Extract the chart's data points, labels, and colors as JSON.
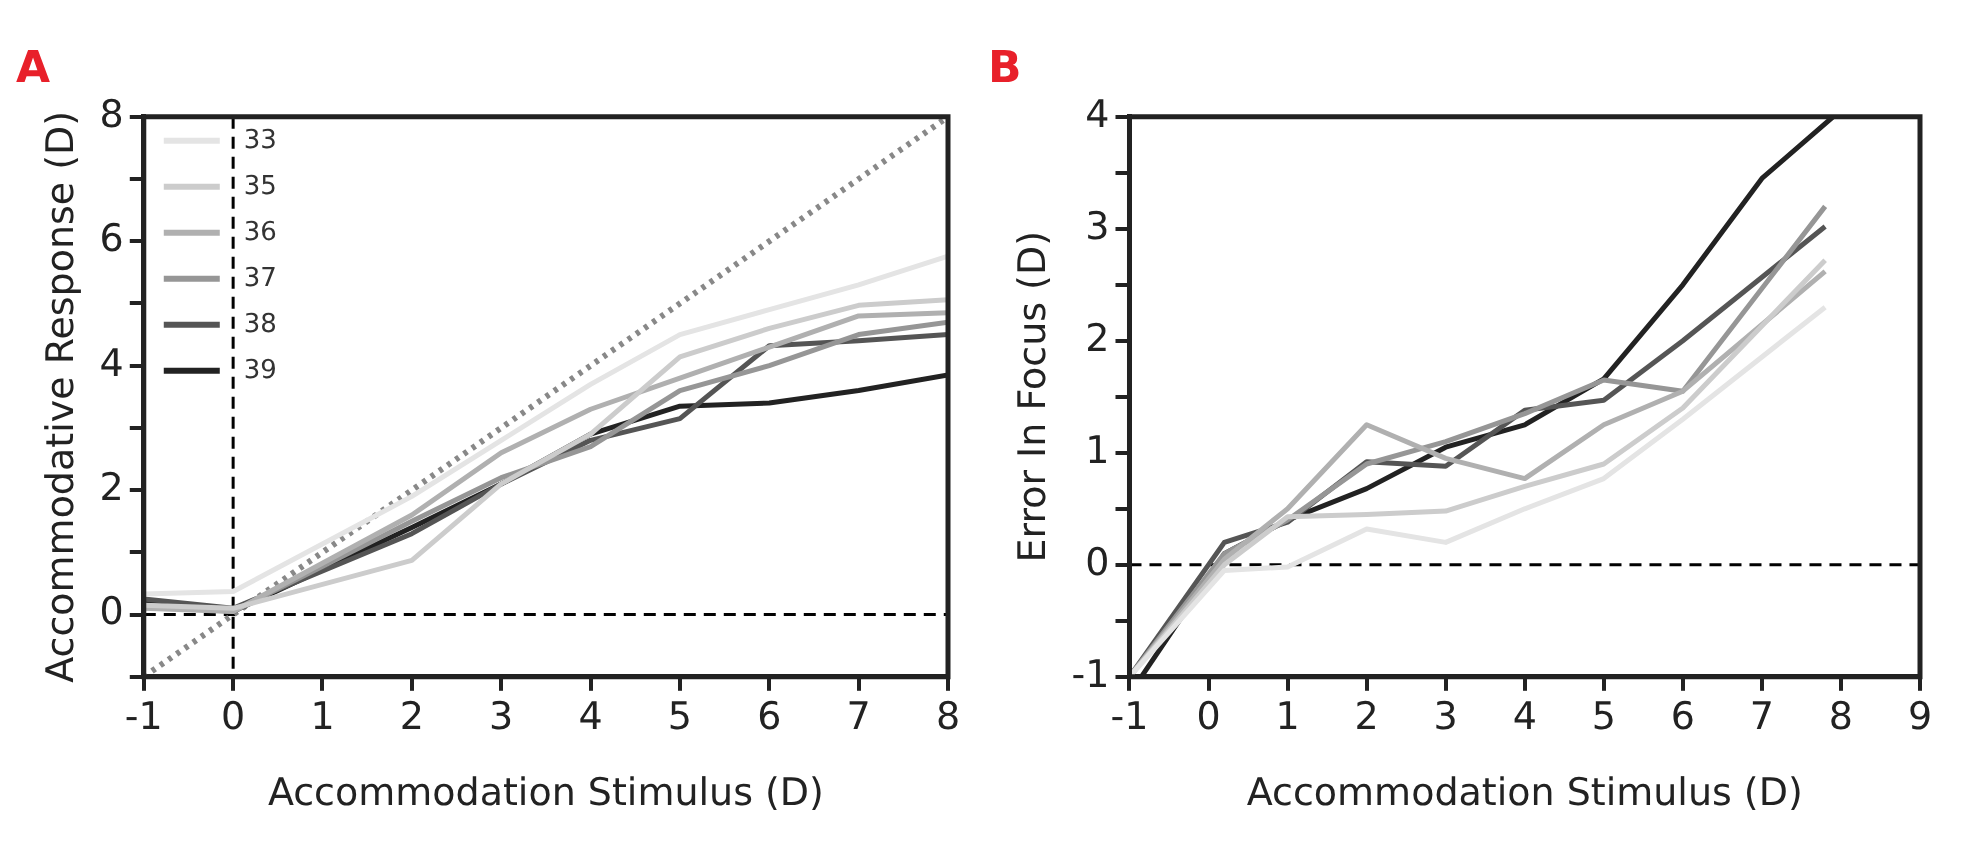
{
  "chart_data": [
    {
      "type": "line",
      "title": "A",
      "xlabel": "Accommodation Stimulus (D)",
      "ylabel": "Accommodative Response (D)",
      "x": [
        -1,
        0,
        2,
        3,
        4,
        5,
        6,
        7,
        8
      ],
      "series": [
        {
          "name": "33",
          "color": "#e4e4e4",
          "values": [
            0.33,
            0.37,
            1.9,
            2.8,
            3.7,
            4.5,
            4.9,
            5.3,
            5.76
          ]
        },
        {
          "name": "35",
          "color": "#cccccc",
          "values": [
            0.15,
            0.1,
            0.87,
            2.1,
            2.9,
            4.14,
            4.6,
            4.97,
            5.06
          ]
        },
        {
          "name": "36",
          "color": "#b0b0b0",
          "values": [
            0.1,
            0.05,
            1.6,
            2.6,
            3.3,
            3.8,
            4.3,
            4.8,
            4.85
          ]
        },
        {
          "name": "37",
          "color": "#969696",
          "values": [
            0.15,
            0.05,
            1.5,
            2.2,
            2.7,
            3.6,
            4.0,
            4.5,
            4.7
          ]
        },
        {
          "name": "38",
          "color": "#555555",
          "values": [
            0.25,
            0.1,
            1.3,
            2.1,
            2.8,
            3.15,
            4.32,
            4.4,
            4.5
          ]
        },
        {
          "name": "39",
          "color": "#222222",
          "values": [
            0.2,
            0.05,
            1.4,
            2.1,
            2.9,
            3.35,
            3.4,
            3.6,
            3.85
          ]
        },
        {
          "type": "line",
          "color": "#888888",
          "line_style": "dotted",
          "x": [
            -1,
            8
          ],
          "values": [
            -1,
            8
          ]
        }
      ],
      "xlim": [
        -1,
        8
      ],
      "xticks": [
        -1,
        0,
        1,
        2,
        3,
        4,
        5,
        6,
        7,
        8
      ],
      "ylim": [
        -1,
        8
      ],
      "yticks": [
        {
          "value": -1,
          "label": null
        },
        0,
        {
          "value": 1,
          "label": null
        },
        2,
        {
          "value": 3,
          "label": null
        },
        4,
        {
          "value": 5,
          "label": null
        },
        6,
        {
          "value": 7,
          "label": null
        },
        8
      ],
      "ref_lines": [
        {
          "axis": "x",
          "value": 0,
          "line_style": "dashed",
          "color": "#000000"
        },
        {
          "axis": "y",
          "value": 0,
          "line_style": "dashed",
          "color": "#000000"
        }
      ],
      "grid": false,
      "legend": "top left",
      "line_style": "solid",
      "marker": "none"
    },
    {
      "type": "line",
      "title": "B",
      "xlabel": "Accommodation Stimulus (D)",
      "ylabel": "Error In Focus (D)",
      "x": [
        -1,
        0.2,
        1,
        2,
        3,
        4,
        5,
        6,
        7.8
      ],
      "series": [
        {
          "color": "#e4e4e4",
          "values": [
            -1,
            -0.05,
            -0.02,
            0.32,
            0.2,
            0.5,
            0.77,
            1.3,
            2.3
          ]
        },
        {
          "color": "#cccccc",
          "values": [
            -1,
            0.0,
            0.43,
            0.45,
            0.48,
            0.7,
            0.9,
            1.4,
            2.72
          ]
        },
        {
          "color": "#b0b0b0",
          "values": [
            -1,
            0.05,
            0.5,
            1.25,
            0.95,
            0.77,
            1.25,
            1.55,
            2.62
          ]
        },
        {
          "color": "#969696",
          "values": [
            -1,
            0.1,
            0.4,
            0.9,
            1.1,
            1.35,
            1.65,
            1.55,
            3.2
          ]
        },
        {
          "color": "#555555",
          "values": [
            -1,
            0.2,
            0.38,
            0.92,
            0.88,
            1.38,
            1.47,
            2.0,
            3.02
          ]
        },
        {
          "color": "#222222",
          "x": [
            -0.85,
            0.2,
            1,
            2,
            3,
            4,
            5,
            6,
            7,
            7.9
          ],
          "values": [
            -1,
            0.1,
            0.4,
            0.68,
            1.05,
            1.25,
            1.66,
            2.5,
            3.45,
            4.0
          ]
        }
      ],
      "xlim": [
        -1,
        9
      ],
      "xticks": [
        -1,
        0,
        1,
        2,
        3,
        4,
        5,
        6,
        7,
        8,
        9
      ],
      "ylim": [
        -1,
        4
      ],
      "yticks": [
        -1,
        {
          "value": -0.5,
          "label": null
        },
        0,
        {
          "value": 0.5,
          "label": null
        },
        1,
        {
          "value": 1.5,
          "label": null
        },
        2,
        {
          "value": 2.5,
          "label": null
        },
        3,
        {
          "value": 3.5,
          "label": null
        },
        4
      ],
      "ref_lines": [
        {
          "axis": "y",
          "value": 0,
          "line_style": "dashed",
          "color": "#000000"
        }
      ],
      "grid": false,
      "legend": false,
      "line_style": "solid",
      "marker": "none"
    }
  ]
}
